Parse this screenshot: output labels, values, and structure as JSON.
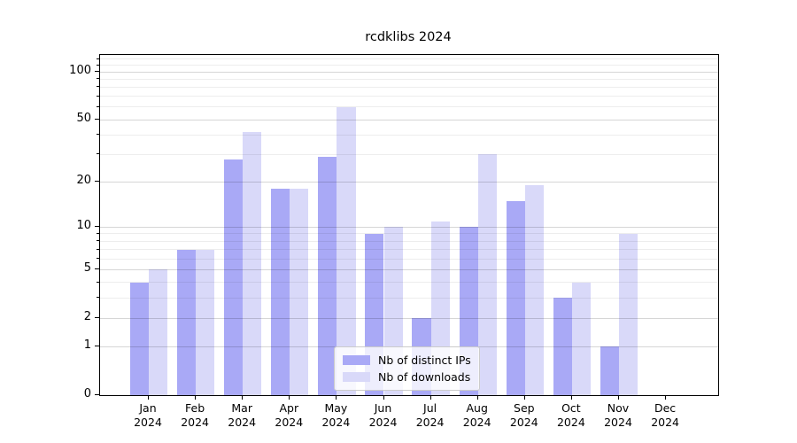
{
  "title": "rcdklibs 2024",
  "chart_data": {
    "type": "bar",
    "title": "rcdklibs 2024",
    "categories": [
      "Jan 2024",
      "Feb 2024",
      "Mar 2024",
      "Apr 2024",
      "May 2024",
      "Jun 2024",
      "Jul 2024",
      "Aug 2024",
      "Sep 2024",
      "Oct 2024",
      "Nov 2024",
      "Dec 2024"
    ],
    "series": [
      {
        "name": "Nb of distinct IPs",
        "color": "#a9a9f6",
        "values": [
          4,
          7,
          28,
          18,
          29,
          9,
          2,
          10,
          15,
          3,
          1,
          0
        ]
      },
      {
        "name": "Nb of downloads",
        "color": "#d9d9f9",
        "values": [
          5,
          7,
          42,
          18,
          60,
          10,
          11,
          30,
          19,
          4,
          9,
          0
        ]
      }
    ],
    "xlabel": "",
    "ylabel": "",
    "yscale": "log1p",
    "ylim": [
      0,
      127.5
    ],
    "yticks_major": [
      0,
      1,
      2,
      5,
      10,
      20,
      50,
      100
    ],
    "yticks_minor": [
      3,
      4,
      6,
      7,
      8,
      9,
      30,
      40,
      60,
      70,
      80,
      90,
      110,
      120
    ],
    "grid": true,
    "legend_position": "inside lower center"
  },
  "legend": {
    "items": [
      {
        "label": "Nb of distinct IPs",
        "color": "#a9a9f6"
      },
      {
        "label": "Nb of downloads",
        "color": "#d9d9f9"
      }
    ]
  },
  "colors": {
    "distinct_ips": "#a9a9f6",
    "downloads": "#d9d9f9",
    "axis": "#000000"
  }
}
